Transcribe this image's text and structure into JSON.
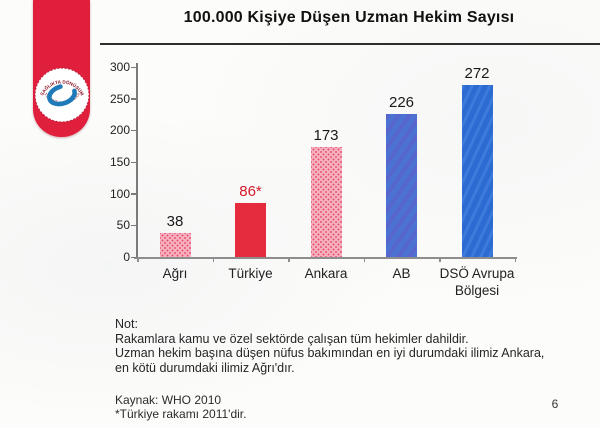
{
  "page": {
    "title": "100.000 Kişiye Düşen Uzman Hekim Sayısı",
    "page_number": "6"
  },
  "logo": {
    "top_text": "SAĞLIKTA DÖNÜŞÜM",
    "bottom_text": "T.C. SAĞLIK BAKANLIĞI",
    "ribbon_color": "#e01f3d",
    "swirl_color": "#1e7ab8"
  },
  "chart_data": {
    "type": "bar",
    "title": "100.000 Kişiye Düşen Uzman Hekim Sayısı",
    "categories": [
      "Ağrı",
      "Türkiye",
      "Ankara",
      "AB",
      "DSÖ Avrupa Bölgesi"
    ],
    "values": [
      38,
      86,
      173,
      226,
      272
    ],
    "bar_labels": [
      "38",
      "86*",
      "173",
      "226",
      "272"
    ],
    "bar_label_colors": [
      "#1a1a1a",
      "#d5182b",
      "#1a1a1a",
      "#1a1a1a",
      "#1a1a1a"
    ],
    "bar_styles": [
      "pink-dotted",
      "red-solid",
      "pink-dotted",
      "blue-mottled",
      "blue-solid"
    ],
    "slugs": [
      "agri",
      "turkiye",
      "ankara",
      "ab",
      "dso-avrupa-bolgesi"
    ],
    "colors": {
      "pink_pattern": "#ee7f95",
      "red_solid": "#e52c3c",
      "blue_mottled": "#4e72d0",
      "blue_solid": "#2f70d8"
    },
    "xlabel": "",
    "ylabel": "",
    "ylim": [
      0,
      300
    ],
    "yticks": [
      0,
      50,
      100,
      150,
      200,
      250,
      300
    ],
    "grid": false,
    "legend": false
  },
  "notes": {
    "lines": [
      "Not:",
      "Rakamlara kamu ve özel sektörde çalışan tüm hekimler dahildir.",
      "Uzman hekim başına düşen nüfus bakımından en iyi durumdaki ilimiz Ankara,",
      "en kötü durumdaki ilimiz Ağrı'dır."
    ]
  },
  "source": {
    "lines": [
      "Kaynak: WHO 2010",
      "*Türkiye rakamı 2011'dir."
    ]
  }
}
